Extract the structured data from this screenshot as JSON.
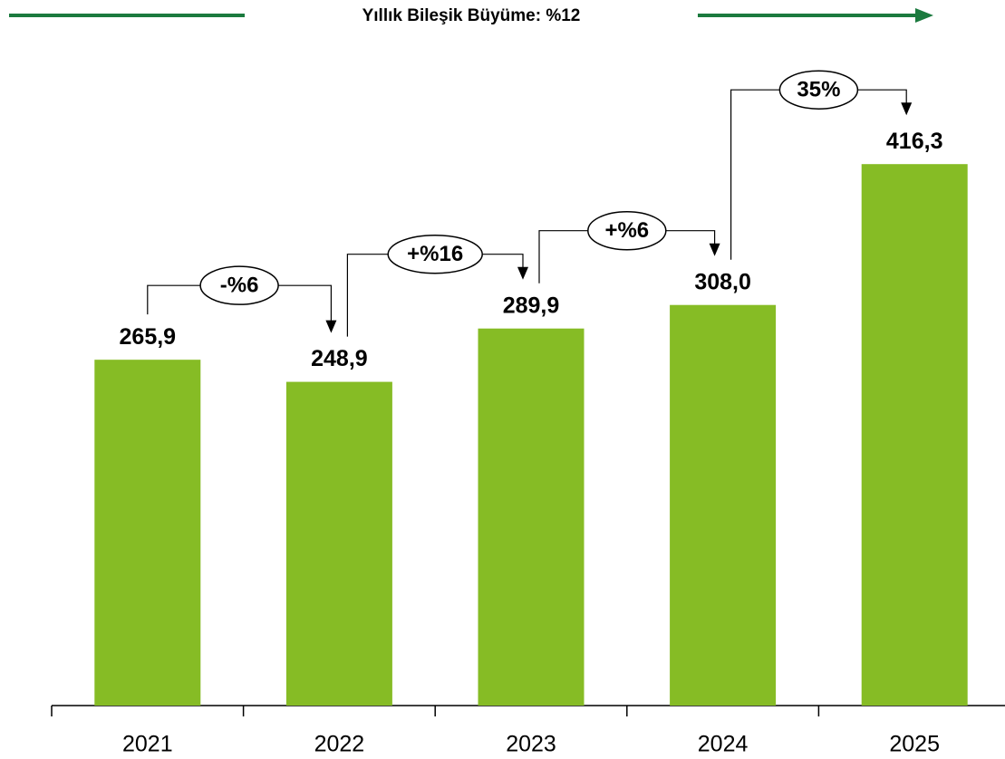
{
  "chart_data": {
    "type": "bar",
    "title": "Yıllık Bileşik Büyüme: %12",
    "categories": [
      "2021",
      "2022",
      "2023",
      "2024",
      "2025"
    ],
    "values": [
      265.9,
      248.9,
      289.9,
      308.0,
      416.3
    ],
    "value_labels": [
      "265,9",
      "248,9",
      "289,9",
      "308,0",
      "416,3"
    ],
    "color": "#86bc25",
    "ylim": [
      0,
      500
    ],
    "growth_labels": [
      "-%6",
      "+%16",
      "+%6",
      "35%"
    ]
  }
}
